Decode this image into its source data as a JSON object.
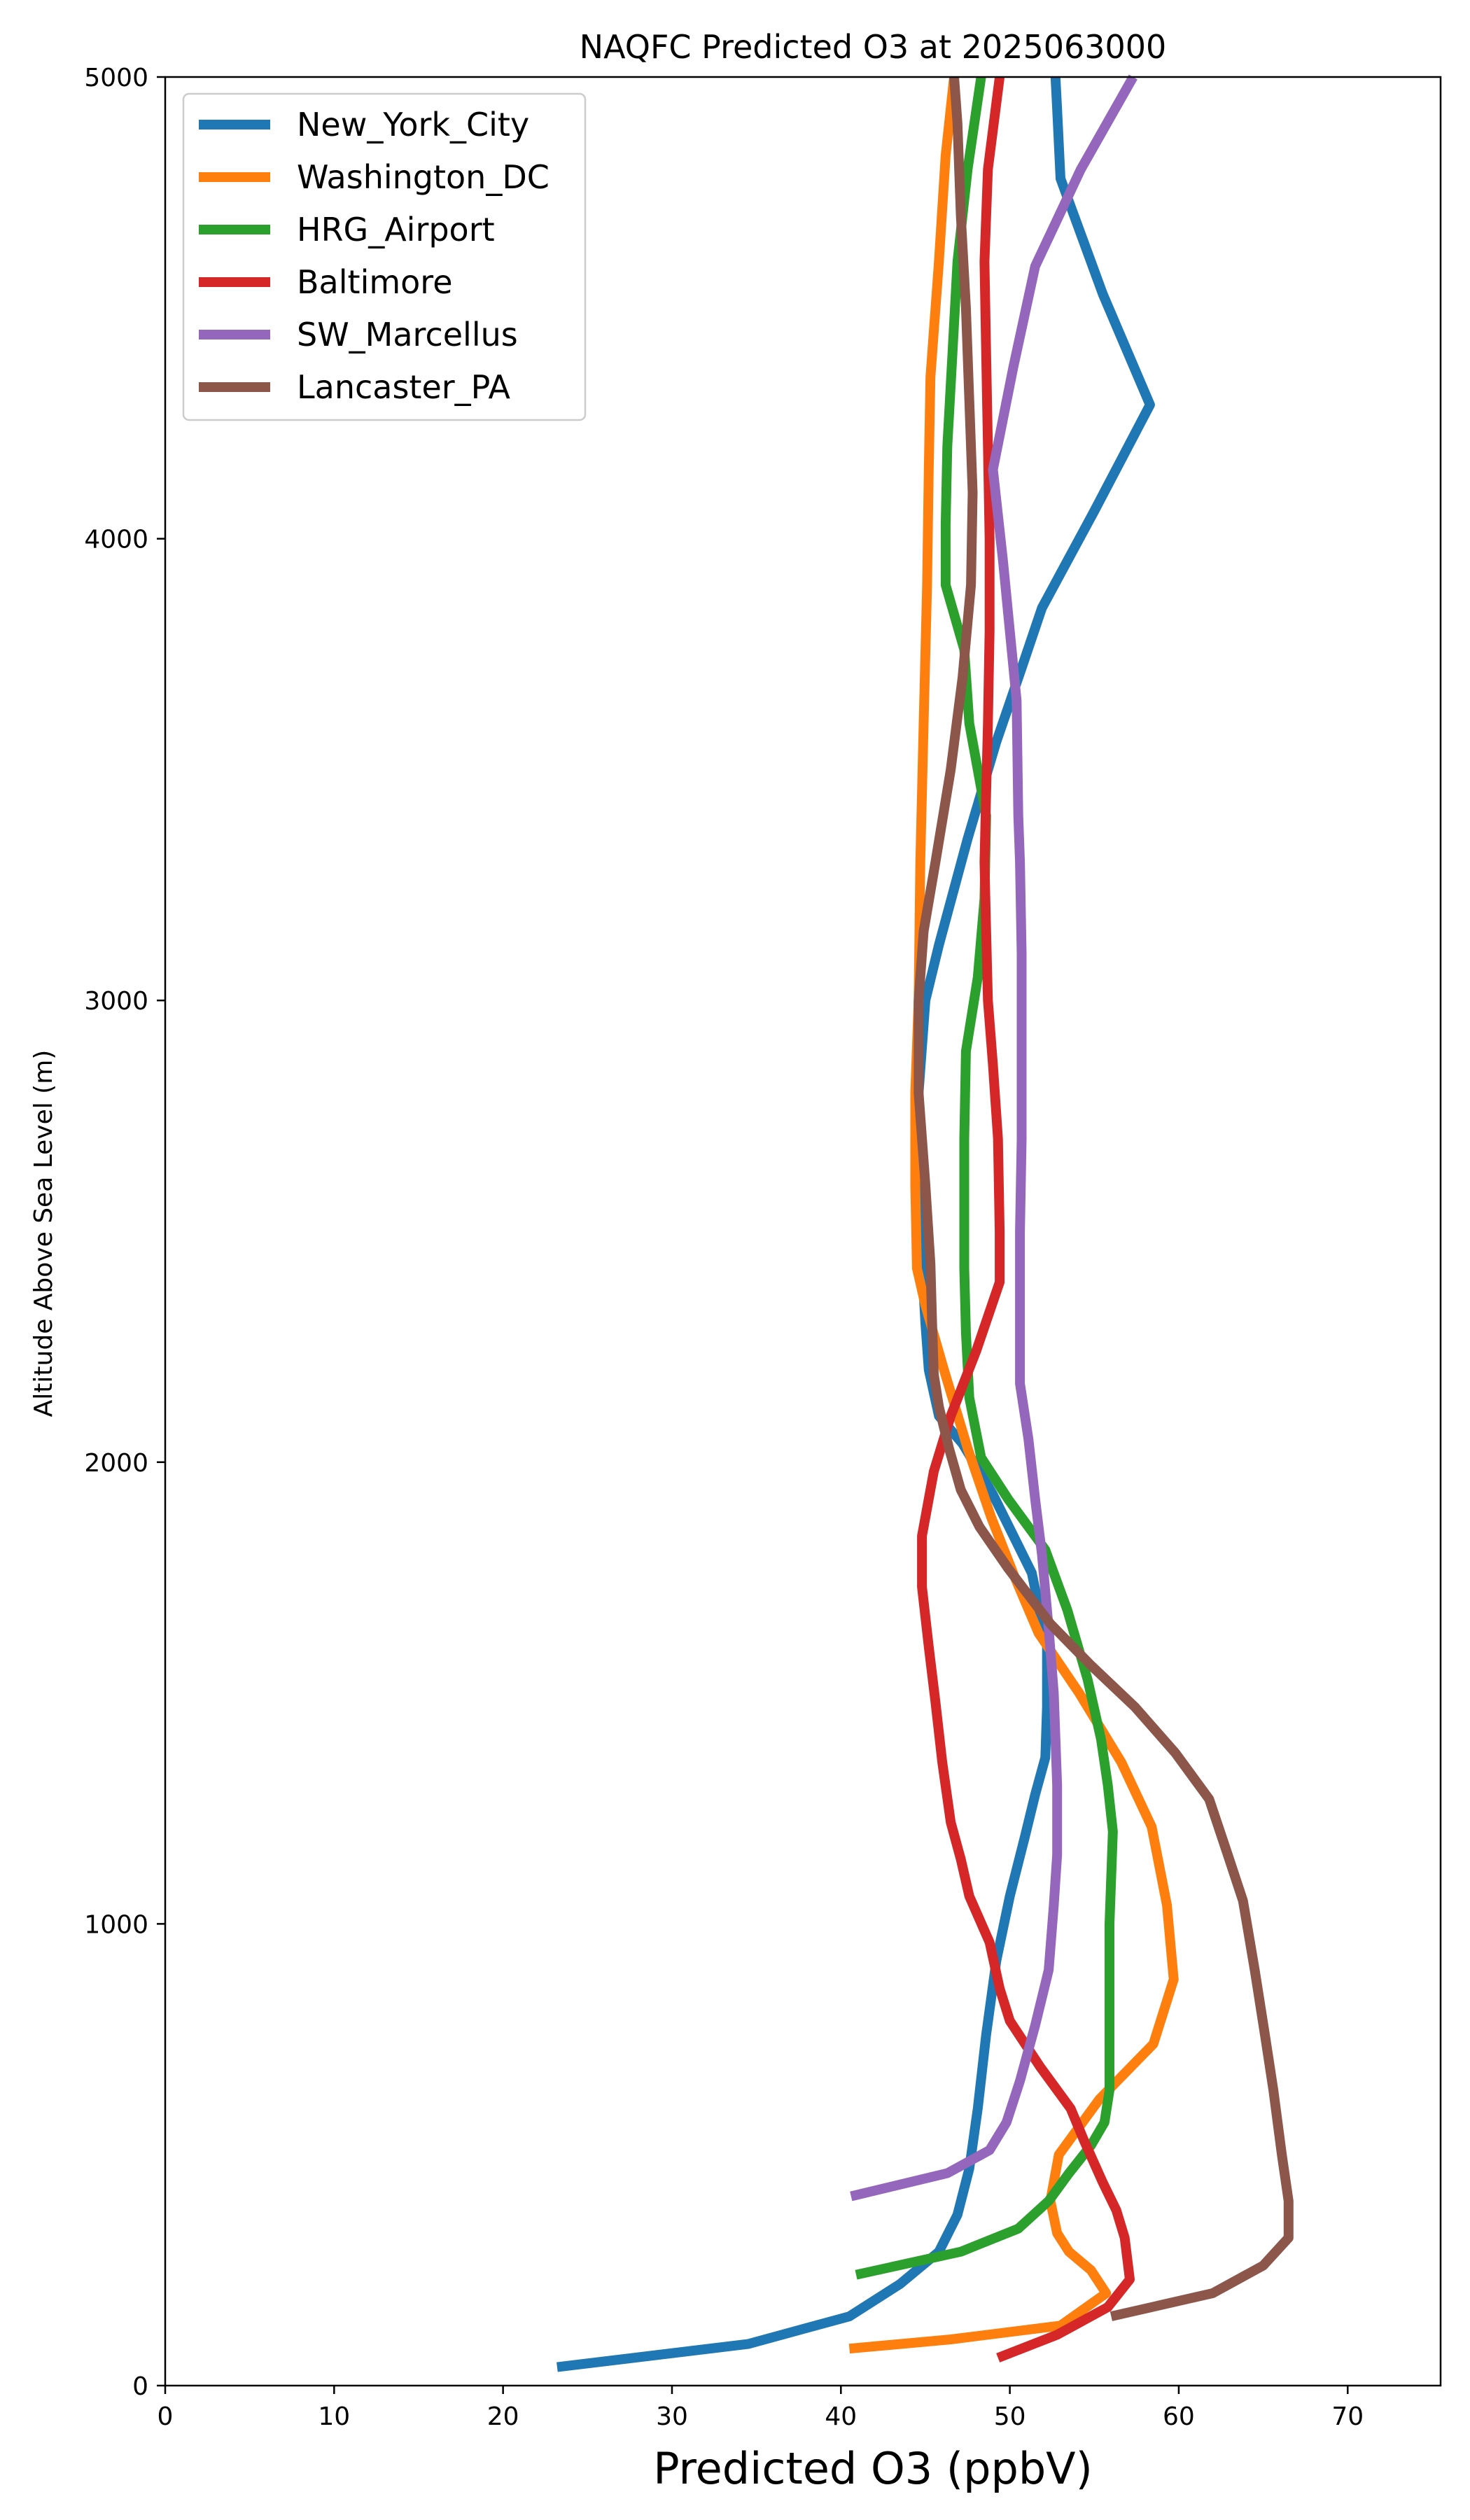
{
  "chart_data": {
    "type": "line",
    "title": "NAQFC Predicted O3 at 2025063000",
    "xlabel": "Predicted O3 (ppbV)",
    "ylabel": "Altitude Above Sea Level (m)",
    "xlim": [
      0,
      75.5
    ],
    "ylim": [
      0,
      5000
    ],
    "xticks": [
      0,
      10,
      20,
      30,
      40,
      50,
      60,
      70
    ],
    "yticks": [
      0,
      1000,
      2000,
      3000,
      4000,
      5000
    ],
    "grid": false,
    "legend_position": "top-left",
    "series": [
      {
        "name": "New_York_City",
        "color": "#1f77b4",
        "points": [
          [
            23.2,
            40
          ],
          [
            34.5,
            90
          ],
          [
            40.5,
            150
          ],
          [
            43.5,
            220
          ],
          [
            45.8,
            290
          ],
          [
            46.9,
            370
          ],
          [
            47.6,
            470
          ],
          [
            48.1,
            600
          ],
          [
            48.6,
            760
          ],
          [
            49.2,
            920
          ],
          [
            50.0,
            1060
          ],
          [
            50.9,
            1190
          ],
          [
            51.5,
            1280
          ],
          [
            52.1,
            1360
          ],
          [
            52.2,
            1470
          ],
          [
            52.2,
            1600
          ],
          [
            51.3,
            1760
          ],
          [
            49.0,
            1930
          ],
          [
            47.2,
            2040
          ],
          [
            45.8,
            2100
          ],
          [
            45.2,
            2200
          ],
          [
            45.0,
            2300
          ],
          [
            44.8,
            2430
          ],
          [
            44.6,
            2600
          ],
          [
            44.6,
            2800
          ],
          [
            45.0,
            3000
          ],
          [
            45.8,
            3120
          ],
          [
            47.5,
            3350
          ],
          [
            49.2,
            3560
          ],
          [
            50.7,
            3720
          ],
          [
            51.9,
            3850
          ],
          [
            55.0,
            4060
          ],
          [
            58.3,
            4290
          ],
          [
            55.5,
            4530
          ],
          [
            53.0,
            4780
          ],
          [
            52.8,
            4930
          ],
          [
            52.7,
            5000
          ]
        ]
      },
      {
        "name": "Washington_DC",
        "color": "#ff7f0e",
        "points": [
          [
            40.5,
            80
          ],
          [
            46.5,
            100
          ],
          [
            53.0,
            130
          ],
          [
            55.7,
            200
          ],
          [
            54.8,
            250
          ],
          [
            53.5,
            290
          ],
          [
            52.8,
            330
          ],
          [
            52.4,
            400
          ],
          [
            52.9,
            500
          ],
          [
            55.3,
            620
          ],
          [
            58.5,
            740
          ],
          [
            59.7,
            880
          ],
          [
            59.3,
            1040
          ],
          [
            58.4,
            1210
          ],
          [
            56.6,
            1350
          ],
          [
            54.1,
            1500
          ],
          [
            51.7,
            1630
          ],
          [
            50.3,
            1750
          ],
          [
            48.9,
            1880
          ],
          [
            47.5,
            2030
          ],
          [
            46.1,
            2200
          ],
          [
            45.0,
            2340
          ],
          [
            44.5,
            2420
          ],
          [
            44.4,
            2600
          ],
          [
            44.4,
            2800
          ],
          [
            44.6,
            3000
          ],
          [
            44.7,
            3300
          ],
          [
            44.9,
            3600
          ],
          [
            45.1,
            3900
          ],
          [
            45.2,
            4150
          ],
          [
            45.3,
            4350
          ],
          [
            45.8,
            4600
          ],
          [
            46.2,
            4830
          ],
          [
            46.7,
            5000
          ]
        ]
      },
      {
        "name": "HRG_Airport",
        "color": "#2ca02c",
        "points": [
          [
            40.9,
            240
          ],
          [
            47.1,
            290
          ],
          [
            50.5,
            340
          ],
          [
            52.3,
            400
          ],
          [
            53.5,
            460
          ],
          [
            54.8,
            520
          ],
          [
            55.6,
            570
          ],
          [
            55.9,
            640
          ],
          [
            55.9,
            700
          ],
          [
            55.9,
            800
          ],
          [
            55.9,
            900
          ],
          [
            55.9,
            1000
          ],
          [
            56.0,
            1100
          ],
          [
            56.1,
            1200
          ],
          [
            55.8,
            1300
          ],
          [
            55.4,
            1400
          ],
          [
            54.6,
            1530
          ],
          [
            53.4,
            1680
          ],
          [
            52.1,
            1810
          ],
          [
            49.9,
            1920
          ],
          [
            48.3,
            2010
          ],
          [
            47.6,
            2140
          ],
          [
            47.4,
            2280
          ],
          [
            47.3,
            2420
          ],
          [
            47.3,
            2570
          ],
          [
            47.3,
            2700
          ],
          [
            47.4,
            2890
          ],
          [
            48.1,
            3050
          ],
          [
            48.5,
            3220
          ],
          [
            48.6,
            3400
          ],
          [
            47.6,
            3600
          ],
          [
            47.3,
            3760
          ],
          [
            46.2,
            3900
          ],
          [
            46.2,
            4030
          ],
          [
            46.3,
            4200
          ],
          [
            46.6,
            4400
          ],
          [
            46.9,
            4600
          ],
          [
            47.5,
            4800
          ],
          [
            48.3,
            5000
          ]
        ]
      },
      {
        "name": "Baltimore",
        "color": "#d62728",
        "points": [
          [
            49.3,
            60
          ],
          [
            52.8,
            110
          ],
          [
            55.8,
            170
          ],
          [
            57.1,
            230
          ],
          [
            56.8,
            320
          ],
          [
            56.3,
            380
          ],
          [
            55.5,
            440
          ],
          [
            54.4,
            530
          ],
          [
            53.6,
            600
          ],
          [
            51.8,
            690
          ],
          [
            50.0,
            790
          ],
          [
            49.4,
            860
          ],
          [
            48.8,
            960
          ],
          [
            47.6,
            1060
          ],
          [
            47.1,
            1140
          ],
          [
            46.5,
            1220
          ],
          [
            46.0,
            1350
          ],
          [
            45.6,
            1480
          ],
          [
            45.2,
            1600
          ],
          [
            44.8,
            1730
          ],
          [
            44.8,
            1840
          ],
          [
            45.5,
            1980
          ],
          [
            46.5,
            2100
          ],
          [
            48.0,
            2240
          ],
          [
            49.4,
            2390
          ],
          [
            49.4,
            2500
          ],
          [
            49.3,
            2700
          ],
          [
            49.0,
            2860
          ],
          [
            48.7,
            3000
          ],
          [
            48.6,
            3150
          ],
          [
            48.5,
            3300
          ],
          [
            48.6,
            3450
          ],
          [
            48.7,
            3600
          ],
          [
            48.8,
            3800
          ],
          [
            48.8,
            4000
          ],
          [
            48.7,
            4200
          ],
          [
            48.6,
            4400
          ],
          [
            48.5,
            4600
          ],
          [
            48.7,
            4800
          ],
          [
            49.4,
            5000
          ]
        ]
      },
      {
        "name": "SW_Marcellus",
        "color": "#9467bd",
        "points": [
          [
            40.6,
            410
          ],
          [
            46.3,
            460
          ],
          [
            48.8,
            510
          ],
          [
            49.8,
            570
          ],
          [
            50.6,
            660
          ],
          [
            51.5,
            780
          ],
          [
            52.3,
            900
          ],
          [
            52.6,
            1040
          ],
          [
            52.8,
            1150
          ],
          [
            52.8,
            1300
          ],
          [
            52.6,
            1500
          ],
          [
            52.3,
            1640
          ],
          [
            51.9,
            1800
          ],
          [
            51.5,
            1920
          ],
          [
            51.1,
            2050
          ],
          [
            50.6,
            2170
          ],
          [
            50.6,
            2300
          ],
          [
            50.6,
            2500
          ],
          [
            50.7,
            2700
          ],
          [
            50.7,
            2900
          ],
          [
            50.7,
            3100
          ],
          [
            50.6,
            3300
          ],
          [
            50.5,
            3400
          ],
          [
            50.4,
            3650
          ],
          [
            50.0,
            3800
          ],
          [
            49.6,
            3950
          ],
          [
            49.0,
            4150
          ],
          [
            50.2,
            4370
          ],
          [
            51.5,
            4590
          ],
          [
            54.2,
            4800
          ],
          [
            57.3,
            5000
          ]
        ]
      },
      {
        "name": "Lancaster_PA",
        "color": "#8c564b",
        "points": [
          [
            56.0,
            150
          ],
          [
            62.0,
            200
          ],
          [
            65.0,
            260
          ],
          [
            66.5,
            320
          ],
          [
            66.5,
            400
          ],
          [
            66.1,
            500
          ],
          [
            65.6,
            640
          ],
          [
            65.1,
            760
          ],
          [
            64.5,
            900
          ],
          [
            63.8,
            1050
          ],
          [
            62.9,
            1150
          ],
          [
            61.8,
            1270
          ],
          [
            59.8,
            1370
          ],
          [
            57.4,
            1470
          ],
          [
            54.8,
            1560
          ],
          [
            52.4,
            1650
          ],
          [
            49.9,
            1770
          ],
          [
            48.2,
            1860
          ],
          [
            47.1,
            1940
          ],
          [
            46.4,
            2030
          ],
          [
            45.8,
            2120
          ],
          [
            45.5,
            2190
          ],
          [
            45.4,
            2300
          ],
          [
            45.3,
            2430
          ],
          [
            45.0,
            2600
          ],
          [
            44.6,
            2800
          ],
          [
            44.6,
            3000
          ],
          [
            44.9,
            3150
          ],
          [
            45.6,
            3300
          ],
          [
            46.5,
            3500
          ],
          [
            47.2,
            3700
          ],
          [
            47.7,
            3900
          ],
          [
            47.8,
            4100
          ],
          [
            47.6,
            4300
          ],
          [
            47.4,
            4500
          ],
          [
            47.1,
            4700
          ],
          [
            46.9,
            4900
          ],
          [
            46.7,
            5000
          ]
        ]
      }
    ]
  }
}
